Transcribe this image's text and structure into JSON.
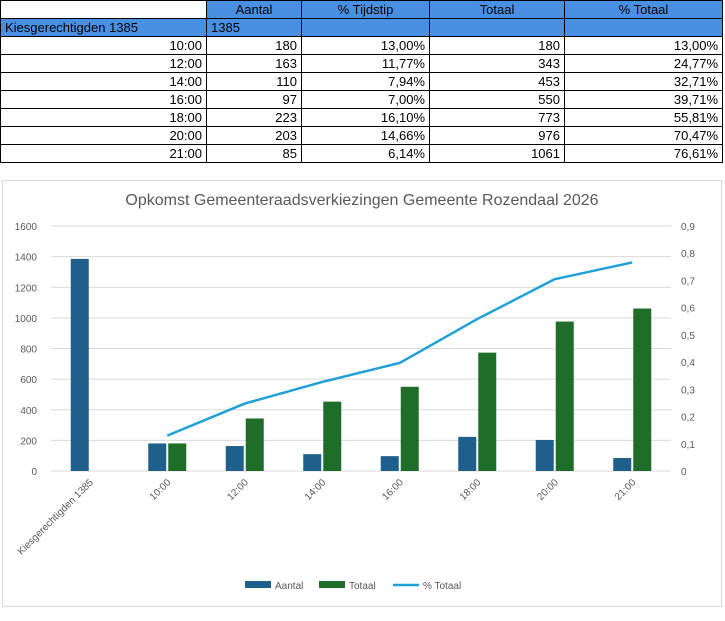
{
  "table": {
    "headers": [
      "",
      "Aantal",
      "% Tijdstip",
      "Totaal",
      "% Totaal"
    ],
    "kies_label": "Kiesgerechtigden 1385",
    "kies_value": "1385",
    "rows": [
      {
        "time": "10:00",
        "aantal": "180",
        "pct": "13,00%",
        "totaal": "180",
        "pct_totaal": "13,00%"
      },
      {
        "time": "12:00",
        "aantal": "163",
        "pct": "11,77%",
        "totaal": "343",
        "pct_totaal": "24,77%"
      },
      {
        "time": "14:00",
        "aantal": "110",
        "pct": "7,94%",
        "totaal": "453",
        "pct_totaal": "32,71%"
      },
      {
        "time": "16:00",
        "aantal": "97",
        "pct": "7,00%",
        "totaal": "550",
        "pct_totaal": "39,71%"
      },
      {
        "time": "18:00",
        "aantal": "223",
        "pct": "16,10%",
        "totaal": "773",
        "pct_totaal": "55,81%"
      },
      {
        "time": "20:00",
        "aantal": "203",
        "pct": "14,66%",
        "totaal": "976",
        "pct_totaal": "70,47%"
      },
      {
        "time": "21:00",
        "aantal": "85",
        "pct": "6,14%",
        "totaal": "1061",
        "pct_totaal": "76,61%"
      }
    ]
  },
  "chart_data": {
    "type": "bar",
    "title": "Opkomst Gemeenteraadsverkiezingen Gemeente Rozendaal 2026",
    "categories": [
      "Kiesgerechtigden 1385",
      "10:00",
      "12:00",
      "14:00",
      "16:00",
      "18:00",
      "20:00",
      "21:00"
    ],
    "series": [
      {
        "name": "Aantal",
        "kind": "bar",
        "axis": "left",
        "color": "#1f5f8b",
        "values": [
          1385,
          180,
          163,
          110,
          97,
          223,
          203,
          85
        ]
      },
      {
        "name": "Totaal",
        "kind": "bar",
        "axis": "left",
        "color": "#1e6e2a",
        "values": [
          null,
          180,
          343,
          453,
          550,
          773,
          976,
          1061
        ]
      },
      {
        "name": "% Totaal",
        "kind": "line",
        "axis": "right",
        "color": "#1fa0d8",
        "values": [
          null,
          0.13,
          0.2477,
          0.3271,
          0.3971,
          0.5581,
          0.7047,
          0.7661
        ]
      }
    ],
    "ylim": [
      0,
      1600
    ],
    "yticks": [
      "0",
      "200",
      "400",
      "600",
      "800",
      "1000",
      "1200",
      "1400",
      "1600"
    ],
    "y2lim": [
      0,
      0.9
    ],
    "y2ticks": [
      "0",
      "0,1",
      "0,2",
      "0,3",
      "0,4",
      "0,5",
      "0,6",
      "0,7",
      "0,8",
      "0,9"
    ],
    "grid": true,
    "legend": "bottom"
  }
}
